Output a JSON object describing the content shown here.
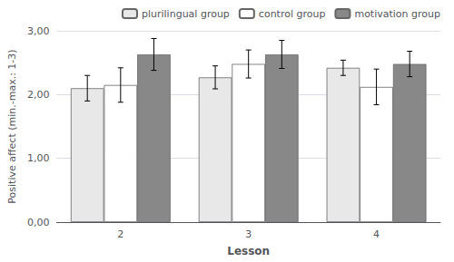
{
  "chart_data": {
    "type": "bar",
    "categories": [
      "2",
      "3",
      "4"
    ],
    "xlabel": "Lesson",
    "ylabel": "Positive affect (min.-max.: 1-3)",
    "series": [
      {
        "name": "plurilingual group",
        "color": "#e8e8e8",
        "values": [
          2.1,
          2.27,
          2.42
        ],
        "errors": [
          0.2,
          0.18,
          0.12
        ]
      },
      {
        "name": "control group",
        "color": "#ffffff",
        "values": [
          2.15,
          2.48,
          2.12
        ],
        "errors": [
          0.27,
          0.22,
          0.28
        ]
      },
      {
        "name": "motivation group",
        "color": "#888888",
        "values": [
          2.63,
          2.63,
          2.48
        ],
        "errors": [
          0.25,
          0.22,
          0.2
        ]
      }
    ],
    "ylim": [
      0,
      3.0
    ],
    "yticks": [
      {
        "value": 0.0,
        "label": "0,00"
      },
      {
        "value": 1.0,
        "label": "1,00"
      },
      {
        "value": 2.0,
        "label": "2,00"
      },
      {
        "value": 3.0,
        "label": "3,00"
      }
    ],
    "grid": true,
    "legend": "upper right"
  }
}
